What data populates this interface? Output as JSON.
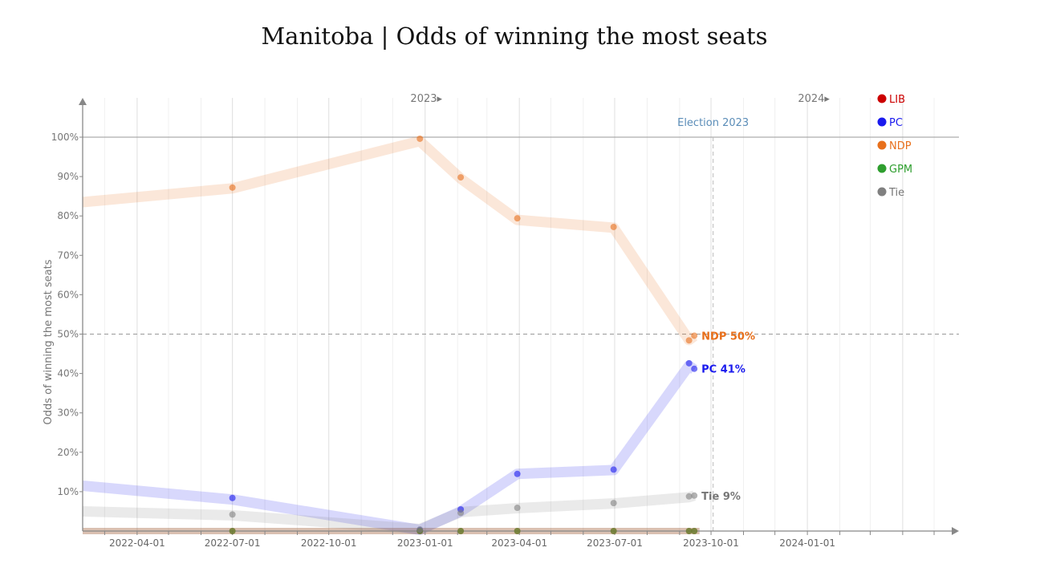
{
  "chart_data": {
    "type": "line",
    "title": "Manitoba | Odds of winning the most seats",
    "ylabel": "Odds of winning the most seats",
    "xlabel": "",
    "x_range": [
      "2022-02-08",
      "2024-05-14"
    ],
    "ylim": [
      0,
      100
    ],
    "y_ticks": [
      10,
      20,
      30,
      40,
      50,
      60,
      70,
      80,
      90,
      100
    ],
    "y_tick_labels": [
      "10%",
      "20%",
      "30%",
      "40%",
      "50%",
      "60%",
      "70%",
      "80%",
      "90%",
      "100%"
    ],
    "x_tick_labels": [
      "2022-04-01",
      "2022-07-01",
      "2022-10-01",
      "2023-01-01",
      "2023-04-01",
      "2023-07-01",
      "2023-10-01",
      "2024-01-01"
    ],
    "year_markers": [
      {
        "date": "2022-12-27",
        "label": "2023▸"
      },
      {
        "date": "2024-01-01",
        "label": "2024▸"
      }
    ],
    "reference_lines": [
      {
        "axis": "y",
        "value": 100,
        "style": "solid"
      },
      {
        "axis": "y",
        "value": 50,
        "style": "dashed"
      }
    ],
    "election_marker": {
      "date": "2023-10-03",
      "label": "Election 2023"
    },
    "grid": true,
    "legend": "top-right",
    "series": [
      {
        "name": "LIB",
        "color": "#cc0000",
        "trend": [
          [
            "2022-02-08",
            0
          ],
          [
            "2023-09-20",
            0
          ]
        ],
        "points": []
      },
      {
        "name": "PC",
        "color": "#1a1aee",
        "end_label": "PC 41%",
        "trend": [
          [
            "2022-02-08",
            11.5
          ],
          [
            "2022-07-01",
            8
          ],
          [
            "2022-12-27",
            0.3
          ],
          [
            "2023-02-04",
            5
          ],
          [
            "2023-03-30",
            14.5
          ],
          [
            "2023-06-30",
            15.5
          ],
          [
            "2023-09-10",
            42
          ],
          [
            "2023-09-15",
            41
          ]
        ],
        "points": [
          [
            "2022-07-01",
            8.4
          ],
          [
            "2022-12-27",
            0.2
          ],
          [
            "2023-02-04",
            5.5
          ],
          [
            "2023-03-30",
            14.5
          ],
          [
            "2023-06-30",
            15.6
          ],
          [
            "2023-09-10",
            42.6
          ],
          [
            "2023-09-15",
            41.2
          ]
        ]
      },
      {
        "name": "NDP",
        "color": "#e8701c",
        "end_label": "NDP 50%",
        "trend": [
          [
            "2022-02-08",
            83.5
          ],
          [
            "2022-07-01",
            87
          ],
          [
            "2022-12-27",
            99
          ],
          [
            "2023-02-04",
            89.5
          ],
          [
            "2023-03-30",
            79
          ],
          [
            "2023-06-30",
            77
          ],
          [
            "2023-09-10",
            48.5
          ],
          [
            "2023-09-15",
            49.5
          ]
        ],
        "points": [
          [
            "2022-07-01",
            87.2
          ],
          [
            "2022-12-27",
            99.6
          ],
          [
            "2023-02-04",
            89.8
          ],
          [
            "2023-03-30",
            79.4
          ],
          [
            "2023-06-30",
            77.2
          ],
          [
            "2023-09-10",
            48.4
          ],
          [
            "2023-09-15",
            49.6
          ]
        ]
      },
      {
        "name": "GPM",
        "color": "#2e9e2e",
        "trend": [
          [
            "2022-02-08",
            0
          ],
          [
            "2023-09-20",
            0
          ]
        ],
        "points": [
          [
            "2022-07-01",
            0
          ],
          [
            "2022-12-27",
            0
          ],
          [
            "2023-02-04",
            0
          ],
          [
            "2023-03-30",
            0
          ],
          [
            "2023-06-30",
            0
          ],
          [
            "2023-09-10",
            0
          ],
          [
            "2023-09-15",
            0
          ]
        ]
      },
      {
        "name": "Tie",
        "color": "#808080",
        "end_label": "Tie 9%",
        "trend": [
          [
            "2022-02-08",
            5
          ],
          [
            "2022-07-01",
            4
          ],
          [
            "2022-12-27",
            0.5
          ],
          [
            "2023-02-04",
            4.8
          ],
          [
            "2023-03-30",
            5.8
          ],
          [
            "2023-06-30",
            7
          ],
          [
            "2023-09-10",
            8.6
          ],
          [
            "2023-09-15",
            9
          ]
        ],
        "points": [
          [
            "2022-07-01",
            4.2
          ],
          [
            "2022-12-27",
            0.4
          ],
          [
            "2023-02-04",
            4.6
          ],
          [
            "2023-03-30",
            5.9
          ],
          [
            "2023-06-30",
            7.1
          ],
          [
            "2023-09-10",
            8.8
          ],
          [
            "2023-09-15",
            9.0
          ]
        ]
      }
    ]
  }
}
